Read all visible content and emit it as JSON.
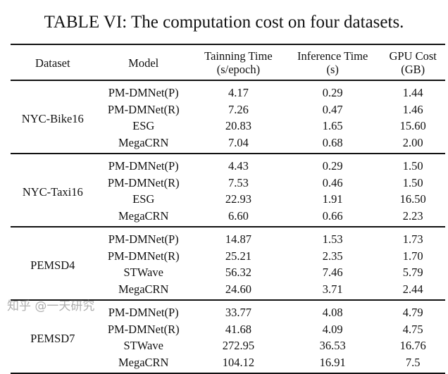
{
  "title": "TABLE VI: The computation cost on four datasets.",
  "headers": [
    [
      "Dataset",
      ""
    ],
    [
      "Model",
      ""
    ],
    [
      "Tainning Time",
      "(s/epoch)"
    ],
    [
      "Inference Time",
      "(s)"
    ],
    [
      "GPU Cost",
      "(GB)"
    ]
  ],
  "groups": [
    {
      "dataset": "NYC-Bike16",
      "rows": [
        [
          "PM-DMNet(P)",
          "4.17",
          "0.29",
          "1.44"
        ],
        [
          "PM-DMNet(R)",
          "7.26",
          "0.47",
          "1.46"
        ],
        [
          "ESG",
          "20.83",
          "1.65",
          "15.60"
        ],
        [
          "MegaCRN",
          "7.04",
          "0.68",
          "2.00"
        ]
      ]
    },
    {
      "dataset": "NYC-Taxi16",
      "rows": [
        [
          "PM-DMNet(P)",
          "4.43",
          "0.29",
          "1.50"
        ],
        [
          "PM-DMNet(R)",
          "7.53",
          "0.46",
          "1.50"
        ],
        [
          "ESG",
          "22.93",
          "1.91",
          "16.50"
        ],
        [
          "MegaCRN",
          "6.60",
          "0.66",
          "2.23"
        ]
      ]
    },
    {
      "dataset": "PEMSD4",
      "rows": [
        [
          "PM-DMNet(P)",
          "14.87",
          "1.53",
          "1.73"
        ],
        [
          "PM-DMNet(R)",
          "25.21",
          "2.35",
          "1.70"
        ],
        [
          "STWave",
          "56.32",
          "7.46",
          "5.79"
        ],
        [
          "MegaCRN",
          "24.60",
          "3.71",
          "2.44"
        ]
      ]
    },
    {
      "dataset": "PEMSD7",
      "rows": [
        [
          "PM-DMNet(P)",
          "33.77",
          "4.08",
          "4.79"
        ],
        [
          "PM-DMNet(R)",
          "41.68",
          "4.09",
          "4.75"
        ],
        [
          "STWave",
          "272.95",
          "36.53",
          "16.76"
        ],
        [
          "MegaCRN",
          "104.12",
          "16.91",
          "7.5"
        ]
      ]
    }
  ],
  "watermark": "知乎 @一天研究"
}
